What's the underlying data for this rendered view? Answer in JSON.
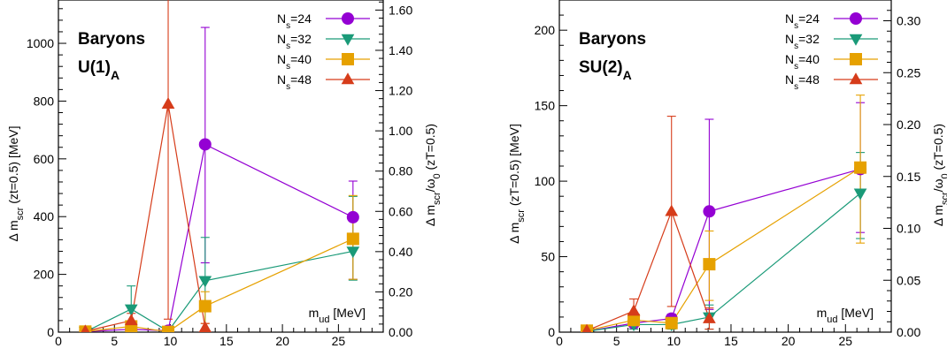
{
  "colors": {
    "Ns24": "#9400d3",
    "Ns32": "#1a9a78",
    "Ns40": "#e6a100",
    "Ns48": "#d63c1a"
  },
  "chart_data": [
    {
      "type": "scatter",
      "annotation": {
        "line1": "Baryons",
        "line2_main": "U(1)",
        "line2_sub": "A"
      },
      "xlabel": {
        "main": "m",
        "sub": "ud",
        "rest": " [MeV]"
      },
      "ylabel": "Δ m_scr (zt=0.5) [MeV]",
      "y2label": "Δ m_scr/ω_0 (zT=0.5)",
      "xlim": [
        0,
        29
      ],
      "ylim": [
        0,
        1150
      ],
      "y2lim": [
        0,
        1.65
      ],
      "xticks": [
        "0",
        "5",
        "10",
        "15",
        "20",
        "25"
      ],
      "yticks": [
        "0",
        "200",
        "400",
        "600",
        "800",
        "1000"
      ],
      "y2ticks": [
        "0.00",
        "0.20",
        "0.40",
        "0.60",
        "0.80",
        "1.00",
        "1.20",
        "1.40",
        "1.60"
      ],
      "series": [
        {
          "name": "N_s=24",
          "marker": "circle",
          "color": "#9400d3",
          "points": [
            [
              2.4,
              2
            ],
            [
              6.5,
              10
            ],
            [
              9.8,
              5
            ],
            [
              13.1,
              650
            ],
            [
              26.3,
              398
            ]
          ],
          "err": [
            [
              2,
              2
            ],
            [
              5,
              5
            ],
            [
              4,
              4
            ],
            [
              410,
              405
            ],
            [
              215,
              125
            ]
          ]
        },
        {
          "name": "N_s=32",
          "marker": "triangle-down",
          "color": "#1a9a78",
          "points": [
            [
              2.4,
              1
            ],
            [
              6.5,
              80
            ],
            [
              9.8,
              3
            ],
            [
              13.1,
              178
            ],
            [
              26.3,
              280
            ]
          ],
          "err": [
            [
              1,
              1
            ],
            [
              80,
              80
            ],
            [
              3,
              3
            ],
            [
              178,
              150
            ],
            [
              100,
              190
            ]
          ]
        },
        {
          "name": "N_s=40",
          "marker": "square",
          "color": "#e6a100",
          "points": [
            [
              2.4,
              2
            ],
            [
              6.5,
              20
            ],
            [
              9.8,
              1
            ],
            [
              13.1,
              90
            ],
            [
              26.3,
              323
            ]
          ],
          "err": [
            [
              2,
              2
            ],
            [
              10,
              10
            ],
            [
              1,
              1
            ],
            [
              60,
              50
            ],
            [
              140,
              150
            ]
          ]
        },
        {
          "name": "N_s=48",
          "marker": "triangle-up",
          "color": "#d63c1a",
          "points": [
            [
              2.4,
              3
            ],
            [
              6.5,
              40
            ],
            [
              9.8,
              790
            ],
            [
              13.1,
              15
            ],
            [
              26.3,
              null
            ]
          ],
          "err": [
            [
              3,
              3
            ],
            [
              25,
              25
            ],
            [
              745,
              400
            ],
            [
              15,
              15
            ],
            [
              0,
              0
            ]
          ]
        }
      ]
    },
    {
      "type": "scatter",
      "annotation": {
        "line1": "Baryons",
        "line2_main": "SU(2)",
        "line2_sub": "A"
      },
      "xlabel": {
        "main": "m",
        "sub": "ud",
        "rest": " [MeV]"
      },
      "ylabel": "Δ m_scr (zT=0.5) [MeV]",
      "y2label": "Δ m_scr/ω_0 (zT=0.5)",
      "xlim": [
        0,
        29
      ],
      "ylim": [
        0,
        220
      ],
      "y2lim": [
        0,
        0.32
      ],
      "xticks": [
        "0",
        "5",
        "10",
        "15",
        "20",
        "25"
      ],
      "yticks": [
        "0",
        "50",
        "100",
        "150",
        "200"
      ],
      "y2ticks": [
        "0.00",
        "0.05",
        "0.10",
        "0.15",
        "0.20",
        "0.25",
        "0.30"
      ],
      "series": [
        {
          "name": "N_s=24",
          "marker": "circle",
          "color": "#9400d3",
          "points": [
            [
              2.4,
              0.5
            ],
            [
              6.5,
              6
            ],
            [
              9.8,
              9
            ],
            [
              13.1,
              80
            ],
            [
              26.3,
              108
            ]
          ],
          "err": [
            [
              0.5,
              0.5
            ],
            [
              3,
              3
            ],
            [
              3,
              3
            ],
            [
              65,
              61
            ],
            [
              42,
              44
            ]
          ]
        },
        {
          "name": "N_s=32",
          "marker": "triangle-down",
          "color": "#1a9a78",
          "points": [
            [
              2.4,
              0.5
            ],
            [
              6.5,
              5
            ],
            [
              9.8,
              5
            ],
            [
              13.1,
              10
            ],
            [
              26.3,
              92
            ]
          ],
          "err": [
            [
              0.5,
              0.5
            ],
            [
              3,
              3
            ],
            [
              3,
              3
            ],
            [
              8,
              8
            ],
            [
              30,
              27
            ]
          ]
        },
        {
          "name": "N_s=40",
          "marker": "square",
          "color": "#e6a100",
          "points": [
            [
              2.4,
              1
            ],
            [
              6.5,
              8
            ],
            [
              9.8,
              6
            ],
            [
              13.1,
              45
            ],
            [
              26.3,
              109
            ]
          ],
          "err": [
            [
              1,
              1
            ],
            [
              4,
              4
            ],
            [
              3,
              3
            ],
            [
              24,
              22
            ],
            [
              50,
              48
            ]
          ]
        },
        {
          "name": "N_s=48",
          "marker": "triangle-up",
          "color": "#d63c1a",
          "points": [
            [
              2.4,
              1
            ],
            [
              6.5,
              14
            ],
            [
              9.8,
              80
            ],
            [
              13.1,
              9
            ],
            [
              26.3,
              null
            ]
          ],
          "err": [
            [
              1,
              1
            ],
            [
              8,
              8
            ],
            [
              63,
              63
            ],
            [
              7,
              7
            ],
            [
              0,
              0
            ]
          ]
        }
      ]
    }
  ]
}
